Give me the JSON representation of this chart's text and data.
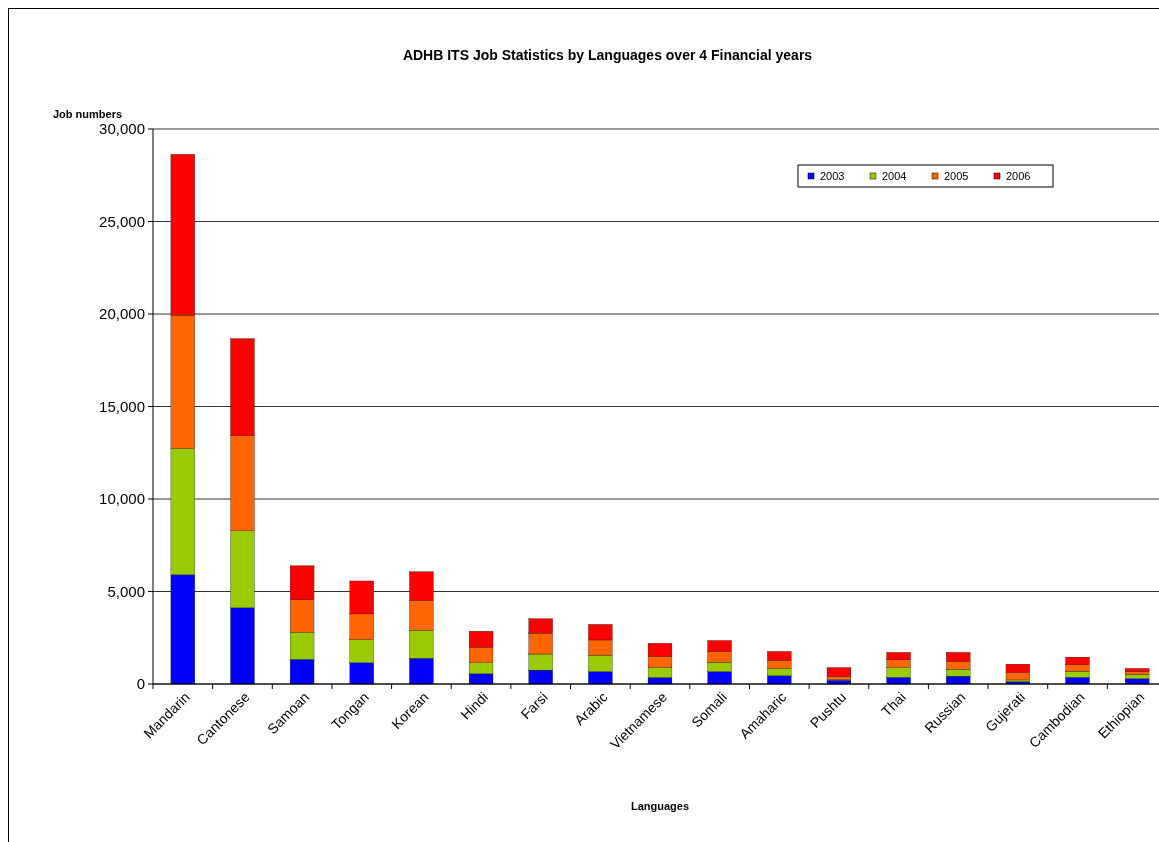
{
  "chart_data": {
    "type": "bar",
    "stacked": true,
    "title": "ADHB ITS Job Statistics by Languages over 4 Financial years",
    "xlabel": "Languages",
    "ylabel": "Job numbers",
    "categories": [
      "Mandarin",
      "Cantonese",
      "Samoan",
      "Tongan",
      "Korean",
      "Hindi",
      "Farsi",
      "Arabic",
      "Vietnamese",
      "Somali",
      "Amaharic",
      "Pushtu",
      "Thai",
      "Russian",
      "Gujerati",
      "Cambodian",
      "Ethiopian"
    ],
    "series": [
      {
        "name": "2003",
        "color": "#0000ff",
        "values": [
          5900,
          4120,
          1330,
          1150,
          1390,
          550,
          750,
          670,
          350,
          670,
          440,
          200,
          360,
          420,
          130,
          360,
          290
        ]
      },
      {
        "name": "2004",
        "color": "#99cc00",
        "values": [
          6830,
          4160,
          1460,
          1250,
          1520,
          610,
          870,
          880,
          540,
          510,
          410,
          40,
          530,
          380,
          90,
          330,
          240
        ]
      },
      {
        "name": "2005",
        "color": "#ff6600",
        "values": [
          7210,
          5140,
          1760,
          1390,
          1600,
          820,
          1130,
          830,
          600,
          570,
          440,
          180,
          420,
          420,
          400,
          350,
          140
        ]
      },
      {
        "name": "2006",
        "color": "#ff0000",
        "values": [
          8690,
          5250,
          1840,
          1780,
          1560,
          870,
          780,
          840,
          710,
          600,
          470,
          470,
          400,
          490,
          450,
          410,
          170
        ]
      }
    ],
    "ylim": [
      0,
      30000
    ],
    "yticks": [
      {
        "value": 0,
        "label": "0"
      },
      {
        "value": 5000,
        "label": "5,000"
      },
      {
        "value": 10000,
        "label": "10,000"
      },
      {
        "value": 15000,
        "label": "15,000"
      },
      {
        "value": 20000,
        "label": "20,000"
      },
      {
        "value": 25000,
        "label": "25,000"
      },
      {
        "value": 30000,
        "label": "30,000"
      }
    ],
    "grid": "y",
    "legend": "top right"
  }
}
